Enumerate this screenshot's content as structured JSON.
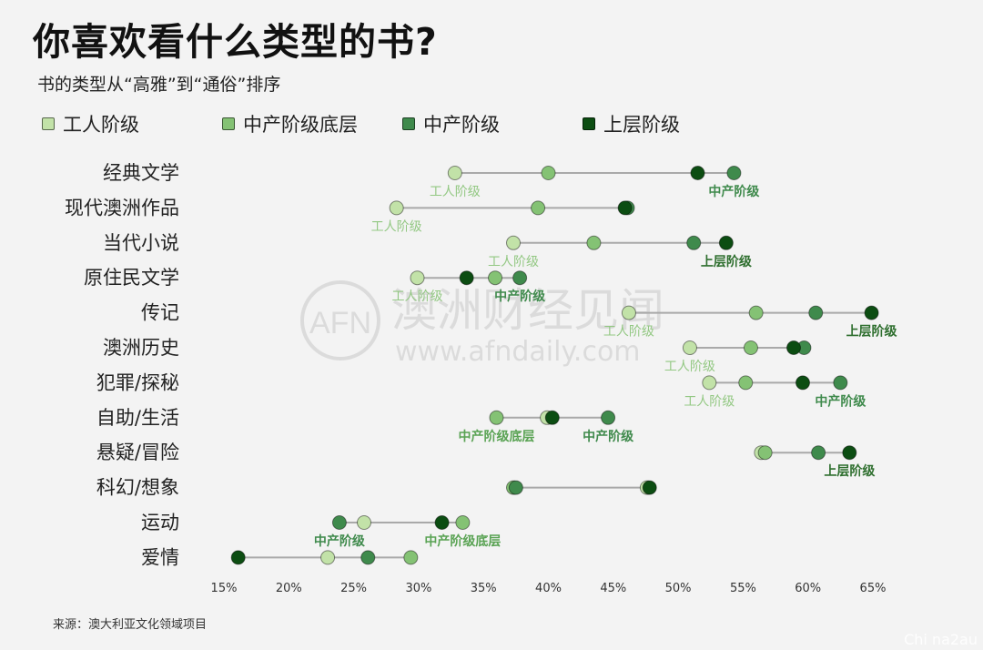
{
  "title": "你喜欢看什么类型的书?",
  "subtitle": "书的类型从“高雅”到“通俗”排序",
  "source": "来源：澳大利亚文化领域项目",
  "watermark": {
    "logo": "AFN",
    "name": "澳洲财经见闻",
    "url": "www.afndaily.com",
    "corner": "Chi na2au"
  },
  "colors": {
    "worker": "#c2e2a8",
    "lower_middle": "#84c274",
    "middle": "#3f8a4c",
    "upper": "#0c4d12",
    "line": "#a9a9a9",
    "worker_label": "#93c883",
    "lower_middle_label": "#5aa354",
    "middle_label": "#3f8a4c",
    "upper_label": "#2f6f2f"
  },
  "chart_data": {
    "type": "dot-range",
    "xlim": [
      15,
      65
    ],
    "xticks": [
      "15%",
      "20%",
      "25%",
      "30%",
      "35%",
      "40%",
      "45%",
      "50%",
      "55%",
      "60%",
      "65%"
    ],
    "series": [
      {
        "key": "worker",
        "name": "工人阶级"
      },
      {
        "key": "lower_middle",
        "name": "中产阶级底层"
      },
      {
        "key": "middle",
        "name": "中产阶级"
      },
      {
        "key": "upper",
        "name": "上层阶级"
      }
    ],
    "categories": [
      {
        "name": "经典文学",
        "worker": 32.8,
        "lower_middle": 40.0,
        "middle": 54.3,
        "upper": 51.5,
        "labels": [
          {
            "text": "工人阶级",
            "series": "worker"
          },
          {
            "text": "中产阶级",
            "series": "middle"
          }
        ]
      },
      {
        "name": "现代澳洲作品",
        "worker": 28.3,
        "lower_middle": 39.2,
        "middle": 46.1,
        "upper": 45.9,
        "labels": [
          {
            "text": "工人阶级",
            "series": "worker"
          }
        ]
      },
      {
        "name": "当代小说",
        "worker": 37.3,
        "lower_middle": 43.5,
        "middle": 51.2,
        "upper": 53.7,
        "labels": [
          {
            "text": "工人阶级",
            "series": "worker"
          },
          {
            "text": "上层阶级",
            "series": "upper"
          }
        ]
      },
      {
        "name": "原住民文学",
        "worker": 29.9,
        "lower_middle": 35.9,
        "middle": 37.8,
        "upper": 33.7,
        "labels": [
          {
            "text": "工人阶级",
            "series": "worker"
          },
          {
            "text": "中产阶级",
            "series": "middle"
          }
        ]
      },
      {
        "name": "传记",
        "worker": 46.2,
        "lower_middle": 56.0,
        "middle": 60.6,
        "upper": 64.9,
        "labels": [
          {
            "text": "工人阶级",
            "series": "worker"
          },
          {
            "text": "上层阶级",
            "series": "upper"
          }
        ]
      },
      {
        "name": "澳洲历史",
        "worker": 50.9,
        "lower_middle": 55.6,
        "middle": 59.7,
        "upper": 58.9,
        "labels": [
          {
            "text": "工人阶级",
            "series": "worker"
          }
        ]
      },
      {
        "name": "犯罪/探秘",
        "worker": 52.4,
        "lower_middle": 55.2,
        "middle": 62.5,
        "upper": 59.6,
        "labels": [
          {
            "text": "工人阶级",
            "series": "worker"
          },
          {
            "text": "中产阶级",
            "series": "middle"
          }
        ]
      },
      {
        "name": "自助/生活",
        "worker": 39.9,
        "lower_middle": 36.0,
        "middle": 44.6,
        "upper": 40.3,
        "labels": [
          {
            "text": "中产阶级底层",
            "series": "lower_middle"
          },
          {
            "text": "中产阶级",
            "series": "middle"
          }
        ]
      },
      {
        "name": "悬疑/冒险",
        "worker": 56.4,
        "lower_middle": 56.7,
        "middle": 60.8,
        "upper": 63.2,
        "labels": [
          {
            "text": "上层阶级",
            "series": "upper"
          }
        ]
      },
      {
        "name": "科幻/想象",
        "worker": 47.6,
        "lower_middle": 37.3,
        "middle": 37.5,
        "upper": 47.8,
        "labels": []
      },
      {
        "name": "运动",
        "worker": 25.8,
        "lower_middle": 33.4,
        "middle": 23.9,
        "upper": 31.8,
        "labels": [
          {
            "text": "中产阶级",
            "series": "middle"
          },
          {
            "text": "中产阶级底层",
            "series": "lower_middle"
          }
        ]
      },
      {
        "name": "爱情",
        "worker": 23.0,
        "lower_middle": 29.4,
        "middle": 26.1,
        "upper": 16.1,
        "labels": []
      }
    ]
  }
}
